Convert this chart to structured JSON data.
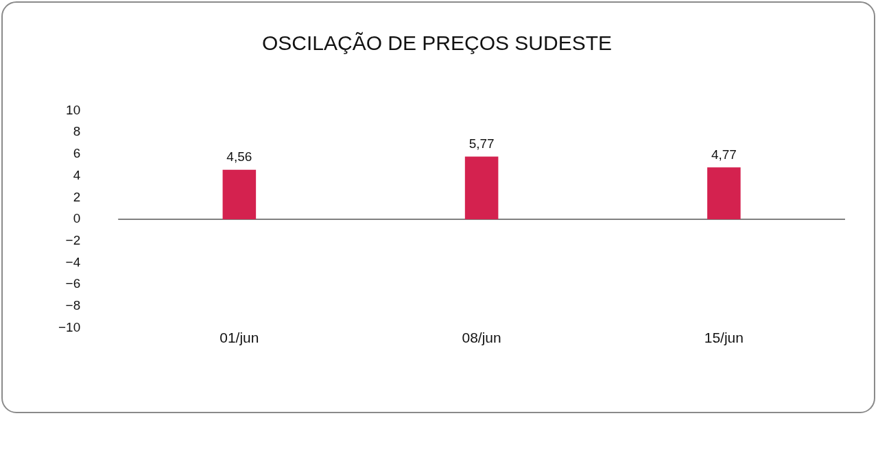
{
  "chart_data": {
    "type": "bar",
    "title": "OSCILAÇÃO DE PREÇOS SUDESTE",
    "categories": [
      "01/jun",
      "08/jun",
      "15/jun"
    ],
    "values": [
      4.56,
      5.77,
      4.77
    ],
    "color": "#d4224f",
    "value_labels": [
      "4,56",
      "5,77",
      "4,77"
    ],
    "ylim": [
      -10,
      10
    ],
    "yticks": [
      -10,
      -8,
      -6,
      -4,
      -2,
      0,
      2,
      4,
      6,
      8,
      10
    ],
    "grid": false,
    "legend": false,
    "ref_lines": [
      {
        "axis": "y",
        "value": 0,
        "color": "#808080"
      }
    ]
  }
}
